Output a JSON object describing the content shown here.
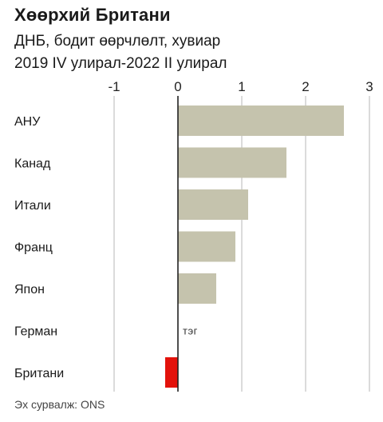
{
  "title": "Хөөрхий Британи",
  "subtitle_line1": "ДНБ, бодит өөрчлөлт, хувиар",
  "subtitle_line2": "2019 IV улирал-2022 II улирал",
  "source": "Эх сурвалж: ONS",
  "colors": {
    "bar": "#c5c3ad",
    "highlight": "#e3120b",
    "grid": "#b7b7b7",
    "zero_line": "#222222"
  },
  "chart_data": {
    "type": "bar",
    "orientation": "horizontal",
    "categories": [
      "АНУ",
      "Канад",
      "Итали",
      "Франц",
      "Япон",
      "Герман",
      "Британи"
    ],
    "values": [
      2.6,
      1.7,
      1.1,
      0.9,
      0.6,
      0.0,
      -0.2
    ],
    "highlight_category": "Британи",
    "x_ticks": [
      "-1",
      "0",
      "1",
      "2",
      "3"
    ],
    "x_tick_values": [
      -1,
      0,
      1,
      2,
      3
    ],
    "xlim": [
      -1,
      3
    ],
    "grid": true,
    "annotations": [
      {
        "category": "Герман",
        "text": "тэг"
      }
    ]
  }
}
